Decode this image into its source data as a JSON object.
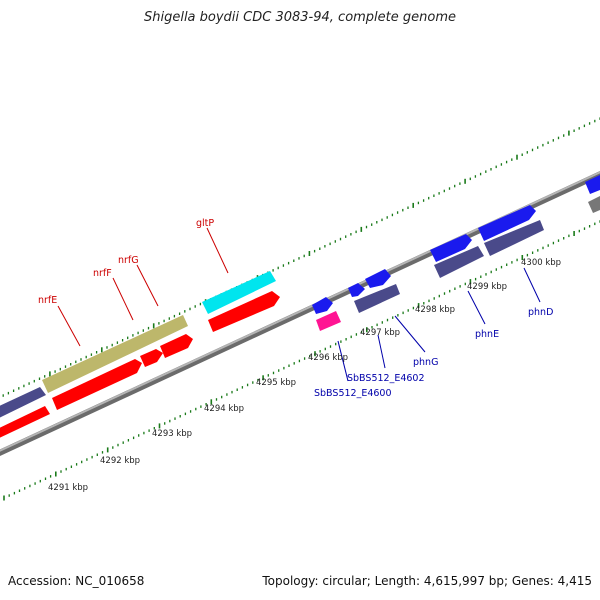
{
  "title": "Shigella boydii CDC 3083-94, complete genome",
  "footer": {
    "accession": "Accession: NC_010658",
    "summary": "Topology: circular; Length: 4,615,997 bp; Genes: 4,415"
  },
  "colors": {
    "backbone": "#888888",
    "tick": "#1a7a1a",
    "forward_label": "#cc0000",
    "reverse_label": "#0000aa",
    "red_cds": "#ff0000",
    "blue_cds": "#1a1aee",
    "navy_cds": "#4a4a8a",
    "olive": "#bdb76b",
    "cyan": "#00ffff",
    "magenta": "#ff1493"
  },
  "scale_labels": [
    "4291 kbp",
    "4292 kbp",
    "4293 kbp",
    "4294 kbp",
    "4295 kbp",
    "4296 kbp",
    "4297 kbp",
    "4298 kbp",
    "4299 kbp",
    "4300 kbp"
  ],
  "gene_labels_forward": [
    "nrfE",
    "nrfF",
    "nrfG",
    "gltP"
  ],
  "gene_labels_reverse": [
    "SbBS512_E4600",
    "SbBS512_E4602",
    "phnG",
    "phnE",
    "phnD"
  ]
}
